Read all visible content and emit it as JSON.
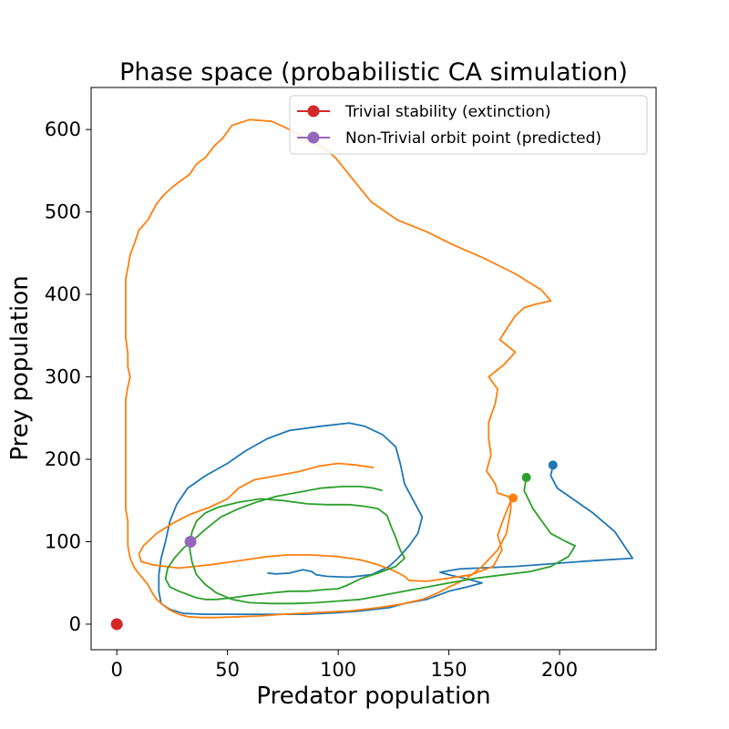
{
  "chart_data": {
    "type": "line",
    "title": "Phase space (probabilistic CA simulation)",
    "xlabel": "Predator population",
    "ylabel": "Prey population",
    "xlim": [
      -11.6,
      243.6
    ],
    "ylim": [
      -31,
      651
    ],
    "xticks": [
      0,
      50,
      100,
      150,
      200
    ],
    "yticks": [
      0,
      100,
      200,
      300,
      400,
      500,
      600
    ],
    "grid": false,
    "legend_position": "top-right",
    "series": [
      {
        "color": "#1f77b4",
        "points": [
          [
            197,
            193
          ],
          [
            196,
            180
          ],
          [
            199,
            165
          ],
          [
            207,
            150
          ],
          [
            215,
            135
          ],
          [
            225,
            112
          ],
          [
            233,
            80
          ],
          [
            215,
            77
          ],
          [
            180,
            70
          ],
          [
            155,
            67
          ],
          [
            146,
            63
          ],
          [
            150,
            60
          ],
          [
            158,
            55
          ],
          [
            165,
            50
          ],
          [
            158,
            45
          ],
          [
            150,
            40
          ],
          [
            140,
            30
          ],
          [
            130,
            25
          ],
          [
            123,
            20
          ],
          [
            110,
            16
          ],
          [
            100,
            14
          ],
          [
            85,
            12
          ],
          [
            70,
            12
          ],
          [
            55,
            12
          ],
          [
            40,
            12
          ],
          [
            30,
            13
          ],
          [
            24,
            18
          ],
          [
            20,
            25
          ],
          [
            19,
            40
          ],
          [
            19,
            60
          ],
          [
            20,
            80
          ],
          [
            22,
            100
          ],
          [
            24,
            125
          ],
          [
            27,
            145
          ],
          [
            32,
            165
          ],
          [
            40,
            180
          ],
          [
            50,
            195
          ],
          [
            58,
            210
          ],
          [
            68,
            225
          ],
          [
            78,
            235
          ],
          [
            92,
            240
          ],
          [
            105,
            244
          ],
          [
            112,
            240
          ],
          [
            120,
            230
          ],
          [
            126,
            215
          ],
          [
            128,
            195
          ],
          [
            130,
            170
          ],
          [
            134,
            150
          ],
          [
            138,
            130
          ],
          [
            136,
            110
          ],
          [
            132,
            95
          ],
          [
            127,
            80
          ],
          [
            123,
            70
          ],
          [
            115,
            60
          ],
          [
            105,
            57
          ],
          [
            95,
            58
          ],
          [
            90,
            60
          ],
          [
            88,
            64
          ],
          [
            84,
            66
          ],
          [
            78,
            62
          ],
          [
            72,
            61
          ],
          [
            68,
            62
          ]
        ]
      },
      {
        "color": "#ff7f0e",
        "points": [
          [
            179,
            153
          ],
          [
            172,
            159
          ],
          [
            171,
            170
          ],
          [
            169,
            178
          ],
          [
            167,
            186
          ],
          [
            169,
            205
          ],
          [
            168,
            225
          ],
          [
            168,
            245
          ],
          [
            171,
            268
          ],
          [
            172,
            285
          ],
          [
            168,
            300
          ],
          [
            175,
            315
          ],
          [
            180,
            330
          ],
          [
            173,
            345
          ],
          [
            176,
            358
          ],
          [
            180,
            374
          ],
          [
            184,
            384
          ],
          [
            189,
            388
          ],
          [
            196,
            392
          ],
          [
            192,
            405
          ],
          [
            180,
            425
          ],
          [
            165,
            445
          ],
          [
            152,
            460
          ],
          [
            140,
            476
          ],
          [
            127,
            490
          ],
          [
            115,
            512
          ],
          [
            105,
            545
          ],
          [
            99,
            565
          ],
          [
            95,
            575
          ],
          [
            90,
            582
          ],
          [
            85,
            590
          ],
          [
            78,
            600
          ],
          [
            70,
            610
          ],
          [
            60,
            612
          ],
          [
            52,
            605
          ],
          [
            48,
            590
          ],
          [
            44,
            580
          ],
          [
            40,
            566
          ],
          [
            36,
            558
          ],
          [
            33,
            546
          ],
          [
            25,
            530
          ],
          [
            21,
            520
          ],
          [
            18,
            510
          ],
          [
            14,
            490
          ],
          [
            10,
            478
          ],
          [
            8,
            462
          ],
          [
            6,
            448
          ],
          [
            5,
            432
          ],
          [
            4,
            418
          ],
          [
            4,
            402
          ],
          [
            4,
            388
          ],
          [
            4,
            370
          ],
          [
            4,
            348
          ],
          [
            5,
            328
          ],
          [
            5,
            312
          ],
          [
            6,
            300
          ],
          [
            5,
            288
          ],
          [
            4,
            272
          ],
          [
            4,
            255
          ],
          [
            4,
            238
          ],
          [
            4,
            220
          ],
          [
            4,
            200
          ],
          [
            4,
            180
          ],
          [
            4,
            160
          ],
          [
            4,
            140
          ],
          [
            5,
            125
          ],
          [
            5,
            110
          ],
          [
            5,
            95
          ],
          [
            6,
            80
          ],
          [
            8,
            68
          ],
          [
            11,
            58
          ],
          [
            14,
            48
          ],
          [
            16,
            38
          ],
          [
            18,
            30
          ],
          [
            21,
            23
          ],
          [
            24,
            17
          ],
          [
            28,
            12
          ],
          [
            32,
            9
          ],
          [
            38,
            8
          ],
          [
            45,
            8
          ],
          [
            55,
            9
          ],
          [
            65,
            10
          ],
          [
            75,
            12
          ],
          [
            90,
            14
          ],
          [
            105,
            16
          ],
          [
            118,
            20
          ],
          [
            128,
            24
          ],
          [
            138,
            30
          ],
          [
            145,
            38
          ],
          [
            150,
            45
          ],
          [
            158,
            55
          ],
          [
            165,
            70
          ],
          [
            172,
            90
          ],
          [
            176,
            110
          ],
          [
            177,
            125
          ],
          [
            178,
            140
          ],
          [
            178,
            150
          ],
          [
            175,
            130
          ],
          [
            172,
            108
          ],
          [
            174,
            90
          ],
          [
            170,
            70
          ],
          [
            160,
            60
          ],
          [
            148,
            55
          ],
          [
            140,
            52
          ],
          [
            132,
            53
          ],
          [
            130,
            58
          ],
          [
            125,
            65
          ],
          [
            118,
            72
          ],
          [
            110,
            78
          ],
          [
            100,
            82
          ],
          [
            88,
            84
          ],
          [
            77,
            84
          ],
          [
            68,
            82
          ],
          [
            58,
            78
          ],
          [
            50,
            75
          ],
          [
            42,
            72
          ],
          [
            35,
            70
          ],
          [
            28,
            68
          ],
          [
            22,
            70
          ],
          [
            16,
            72
          ],
          [
            11,
            76
          ],
          [
            10,
            85
          ],
          [
            12,
            95
          ],
          [
            18,
            110
          ],
          [
            25,
            122
          ],
          [
            33,
            133
          ],
          [
            42,
            142
          ],
          [
            50,
            152
          ],
          [
            55,
            165
          ],
          [
            62,
            175
          ],
          [
            72,
            180
          ],
          [
            82,
            185
          ],
          [
            92,
            192
          ],
          [
            100,
            195
          ],
          [
            108,
            193
          ],
          [
            116,
            190
          ]
        ]
      },
      {
        "color": "#2ca02c",
        "points": [
          [
            185,
            178
          ],
          [
            184,
            162
          ],
          [
            188,
            140
          ],
          [
            192,
            125
          ],
          [
            196,
            110
          ],
          [
            203,
            100
          ],
          [
            207,
            95
          ],
          [
            204,
            82
          ],
          [
            196,
            70
          ],
          [
            187,
            64
          ],
          [
            175,
            60
          ],
          [
            163,
            56
          ],
          [
            150,
            50
          ],
          [
            140,
            45
          ],
          [
            130,
            40
          ],
          [
            120,
            35
          ],
          [
            110,
            30
          ],
          [
            100,
            28
          ],
          [
            90,
            26
          ],
          [
            80,
            25
          ],
          [
            70,
            25
          ],
          [
            60,
            26
          ],
          [
            52,
            30
          ],
          [
            45,
            38
          ],
          [
            40,
            48
          ],
          [
            36,
            60
          ],
          [
            34,
            75
          ],
          [
            33,
            90
          ],
          [
            33,
            100
          ],
          [
            34,
            112
          ],
          [
            36,
            125
          ],
          [
            40,
            135
          ],
          [
            46,
            142
          ],
          [
            55,
            148
          ],
          [
            65,
            152
          ],
          [
            75,
            150
          ],
          [
            86,
            146
          ],
          [
            95,
            145
          ],
          [
            105,
            145
          ],
          [
            112,
            143
          ],
          [
            118,
            140
          ],
          [
            122,
            132
          ],
          [
            124,
            118
          ],
          [
            126,
            105
          ],
          [
            128,
            90
          ],
          [
            130,
            80
          ],
          [
            126,
            70
          ],
          [
            118,
            62
          ],
          [
            110,
            55
          ],
          [
            104,
            47
          ],
          [
            100,
            43
          ],
          [
            94,
            42
          ],
          [
            86,
            40
          ],
          [
            78,
            40
          ],
          [
            70,
            38
          ],
          [
            60,
            35
          ],
          [
            52,
            32
          ],
          [
            45,
            30
          ],
          [
            40,
            30
          ],
          [
            36,
            32
          ],
          [
            32,
            36
          ],
          [
            28,
            40
          ],
          [
            24,
            45
          ],
          [
            22,
            55
          ],
          [
            23,
            68
          ],
          [
            26,
            80
          ],
          [
            30,
            92
          ],
          [
            35,
            103
          ],
          [
            40,
            115
          ],
          [
            47,
            130
          ],
          [
            55,
            140
          ],
          [
            63,
            148
          ],
          [
            72,
            155
          ],
          [
            82,
            160
          ],
          [
            92,
            165
          ],
          [
            102,
            167
          ],
          [
            110,
            167
          ],
          [
            116,
            165
          ],
          [
            120,
            162
          ]
        ]
      }
    ],
    "markers": [
      {
        "x": 197,
        "y": 193,
        "color": "#1f77b4"
      },
      {
        "x": 179,
        "y": 153,
        "color": "#ff7f0e"
      },
      {
        "x": 185,
        "y": 178,
        "color": "#2ca02c"
      },
      {
        "x": 0,
        "y": 0,
        "color": "#d62728"
      },
      {
        "x": 33.3,
        "y": 100,
        "color": "#9467bd"
      }
    ],
    "legend": [
      {
        "label": "Trivial stability (extinction)",
        "color": "#d62728"
      },
      {
        "label": "Non-Trivial orbit point (predicted)",
        "color": "#9467bd"
      }
    ]
  }
}
